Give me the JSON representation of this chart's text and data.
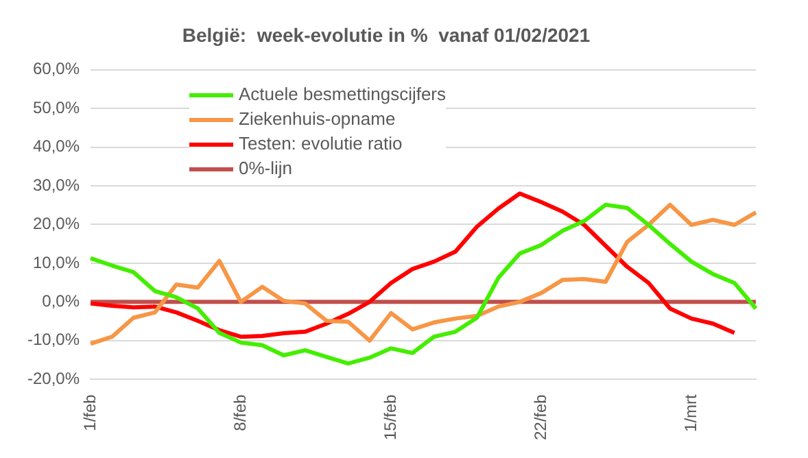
{
  "chart_data": {
    "type": "line",
    "title": "België:  week-evolutie in %  vanaf 01/02/2021",
    "categories": [
      "1/feb",
      null,
      null,
      null,
      null,
      null,
      null,
      "8/feb",
      null,
      null,
      null,
      null,
      null,
      null,
      "15/feb",
      null,
      null,
      null,
      null,
      null,
      null,
      "22/feb",
      null,
      null,
      null,
      null,
      null,
      null,
      "1/mrt",
      null,
      null,
      null
    ],
    "series": [
      {
        "name": "Actuele besmettingscijfers",
        "color": "#44ee00",
        "values": [
          11.3,
          9.4,
          7.7,
          2.8,
          1.2,
          -1.7,
          -8,
          -10.5,
          -11.2,
          -13.8,
          -12.5,
          -14.2,
          -15.9,
          -14.4,
          -12,
          -13.2,
          -9,
          -7.7,
          -4.1,
          6.2,
          12.5,
          14.7,
          18.4,
          20.9,
          25.1,
          24.3,
          19.9,
          15,
          10.4,
          7.2,
          4.9,
          -1.7
        ]
      },
      {
        "name": "Ziekenhuis-opname",
        "color": "#f79646",
        "values": [
          -10.8,
          -9,
          -4.1,
          -2.7,
          4.5,
          3.7,
          10.6,
          0,
          3.9,
          0.3,
          -0.4,
          -4.9,
          -5.1,
          -10,
          -2.9,
          -7.1,
          -5.3,
          -4.3,
          -3.6,
          -1.2,
          0,
          2.3,
          5.7,
          5.9,
          5.2,
          15.5,
          19.9,
          25.1,
          19.9,
          21.2,
          19.9,
          23.1
        ]
      },
      {
        "name": "Testen: evolutie ratio",
        "color": "#ff0000",
        "values": [
          -0.4,
          -1,
          -1.4,
          -1.2,
          -2.7,
          -4.9,
          -7.3,
          -9,
          -8.8,
          -8.1,
          -7.7,
          -5.6,
          -3.1,
          0,
          4.9,
          8.5,
          10.4,
          13,
          19.4,
          24.1,
          28,
          25.8,
          23.3,
          19.9,
          14.5,
          9.1,
          4.9,
          -1.7,
          -4.3,
          -5.6,
          -8,
          null
        ]
      },
      {
        "name": "0%-lijn",
        "color": "#c0504d",
        "values": [
          0,
          0,
          0,
          0,
          0,
          0,
          0,
          0,
          0,
          0,
          0,
          0,
          0,
          0,
          0,
          0,
          0,
          0,
          0,
          0,
          0,
          0,
          0,
          0,
          0,
          0,
          0,
          0,
          0,
          0,
          0,
          0
        ]
      }
    ],
    "ylim": [
      -20,
      60
    ],
    "yticks": [
      {
        "value": -20,
        "label": "-20,0%"
      },
      {
        "value": -10,
        "label": "-10,0%"
      },
      {
        "value": 0,
        "label": "0,0%"
      },
      {
        "value": 10,
        "label": "10,0%"
      },
      {
        "value": 20,
        "label": "20,0%"
      },
      {
        "value": 30,
        "label": "30,0%"
      },
      {
        "value": 40,
        "label": "40,0%"
      },
      {
        "value": 50,
        "label": "50,0%"
      },
      {
        "value": 60,
        "label": "60,0%"
      }
    ],
    "grid": "y",
    "legend": "top left",
    "marker": "none",
    "line_style": "solid"
  }
}
